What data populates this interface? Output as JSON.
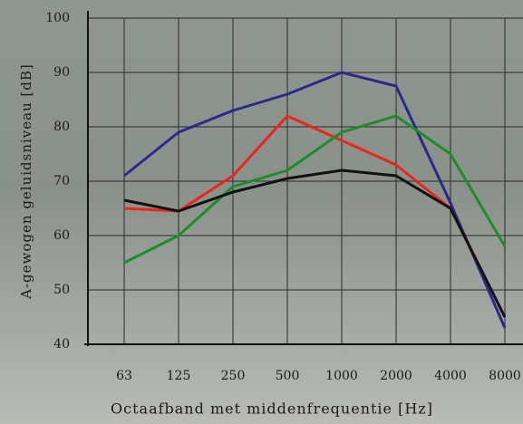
{
  "chart_data": {
    "type": "line",
    "x_label": "Octaafband met middenfrequentie [Hz]",
    "y_label": "A-gewogen geluidsniveau [dB]",
    "categories": [
      "63",
      "125",
      "250",
      "500",
      "1000",
      "2000",
      "4000",
      "8000"
    ],
    "series": [
      {
        "color": "#2a2a8c",
        "values": [
          71,
          79,
          83,
          86,
          90,
          87.5,
          66,
          43
        ]
      },
      {
        "color": "#e8261e",
        "values": [
          65,
          64.5,
          71,
          82,
          77.5,
          73,
          65,
          45
        ]
      },
      {
        "color": "#1e8c2a",
        "values": [
          55,
          60,
          69,
          72,
          79,
          82,
          75,
          58
        ]
      },
      {
        "color": "#111111",
        "values": [
          66.5,
          64.5,
          68,
          70.5,
          72,
          71,
          65,
          45
        ]
      }
    ],
    "ylim": [
      40,
      100
    ],
    "yticks": [
      40,
      50,
      60,
      70,
      80,
      90,
      100
    ],
    "grid": true
  }
}
